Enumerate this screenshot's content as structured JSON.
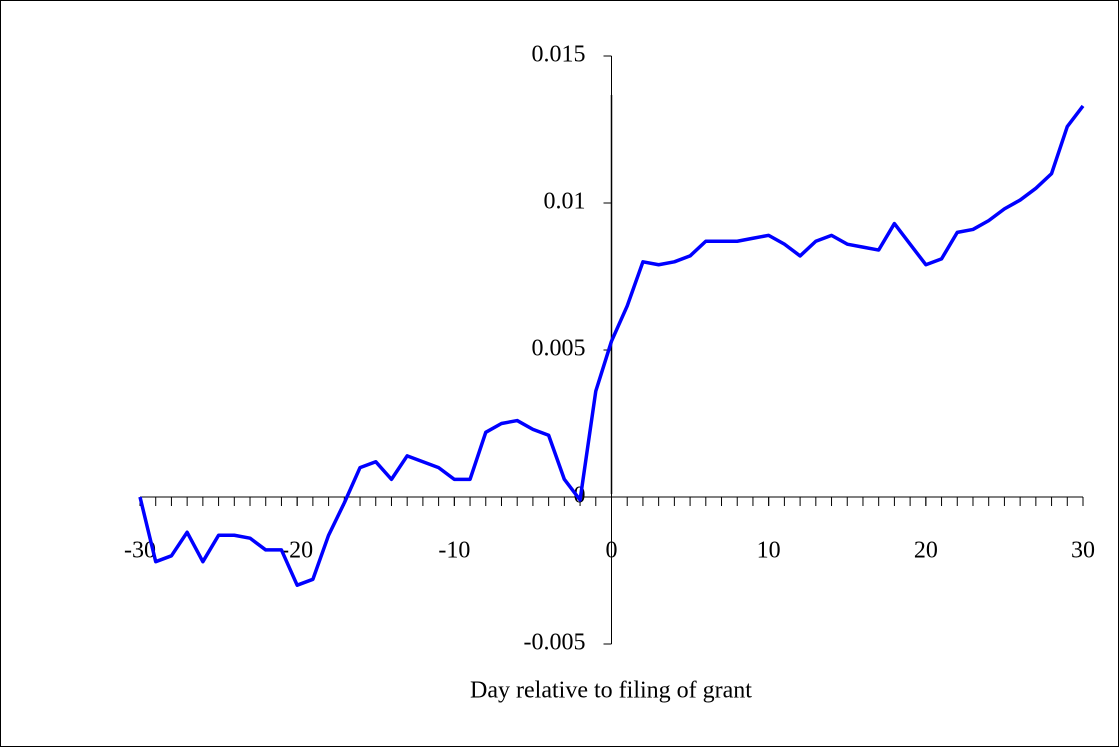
{
  "chart_data": {
    "type": "line",
    "x_label": "Day relative to filing of grant",
    "x": [
      -30,
      -29,
      -28,
      -27,
      -26,
      -25,
      -24,
      -23,
      -22,
      -21,
      -20,
      -19,
      -18,
      -17,
      -16,
      -15,
      -14,
      -13,
      -12,
      -11,
      -10,
      -9,
      -8,
      -7,
      -6,
      -5,
      -4,
      -3,
      -2,
      -1,
      0,
      1,
      2,
      3,
      4,
      5,
      6,
      7,
      8,
      9,
      10,
      11,
      12,
      13,
      14,
      15,
      16,
      17,
      18,
      19,
      20,
      21,
      22,
      23,
      24,
      25,
      26,
      27,
      28,
      29,
      30
    ],
    "series": [
      {
        "color": "#0000ff",
        "values": [
          0,
          -0.0022,
          -0.002,
          -0.0012,
          -0.0022,
          -0.0013,
          -0.0013,
          -0.0014,
          -0.0018,
          -0.0018,
          -0.003,
          -0.0028,
          -0.0013,
          -0.0002,
          0.001,
          0.0012,
          0.0006,
          0.0014,
          0.0012,
          0.001,
          0.0006,
          0.0006,
          0.0022,
          0.0025,
          0.0026,
          0.0023,
          0.0021,
          0.0006,
          -0.0001,
          0.0036,
          0.0053,
          0.0065,
          0.008,
          0.0079,
          0.008,
          0.0082,
          0.0087,
          0.0087,
          0.0087,
          0.0088,
          0.0089,
          0.0086,
          0.0082,
          0.0087,
          0.0089,
          0.0086,
          0.0085,
          0.0084,
          0.0093,
          0.0086,
          0.0079,
          0.0081,
          0.009,
          0.0091,
          0.0094,
          0.0098,
          0.0101,
          0.0105,
          0.011,
          0.0126,
          0.0133
        ]
      }
    ],
    "xlim": [
      -30,
      30
    ],
    "xticks": [
      -30,
      -20,
      -10,
      0,
      10,
      20,
      30
    ],
    "minor_tick_step": 1,
    "ylim": [
      -0.005,
      0.015
    ],
    "yticks": [
      -0.005,
      0,
      0.005,
      0.01,
      0.015
    ],
    "vline_x": 0,
    "grid": false
  }
}
